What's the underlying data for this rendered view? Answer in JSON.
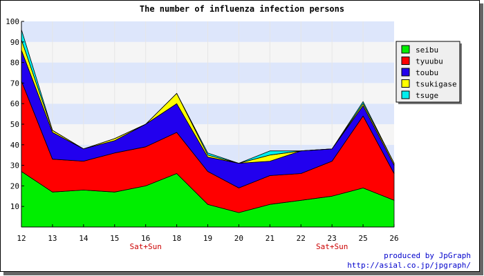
{
  "chart_data": {
    "type": "area",
    "stacked": true,
    "title": "The number of influenza infection persons",
    "xlabel": "",
    "ylabel": "",
    "x": [
      "12",
      "13",
      "14",
      "15",
      "16",
      "18",
      "19",
      "20",
      "21",
      "22",
      "23",
      "25",
      "26"
    ],
    "x_annotations": [
      {
        "x": "16",
        "text": "Sat+Sun"
      },
      {
        "x": "23",
        "text": "Sat+Sun"
      }
    ],
    "ylim": [
      0,
      100
    ],
    "yticks": [
      10,
      20,
      30,
      40,
      50,
      60,
      70,
      80,
      90,
      100
    ],
    "grid": true,
    "band_colors": [
      "#f5f5f5",
      "#dde6fb"
    ],
    "legend_position": "right",
    "series": [
      {
        "name": "seibu",
        "color": "#00ee00",
        "values": [
          27,
          17,
          18,
          17,
          20,
          26,
          11,
          7,
          11,
          13,
          15,
          19,
          13
        ]
      },
      {
        "name": "tyuubu",
        "color": "#ff0000",
        "values": [
          44,
          16,
          14,
          19,
          19,
          20,
          16,
          12,
          14,
          13,
          17,
          35,
          13
        ]
      },
      {
        "name": "toubu",
        "color": "#2200ee",
        "values": [
          15,
          13,
          6,
          6,
          11,
          14,
          7,
          12,
          7,
          11,
          6,
          5,
          4
        ]
      },
      {
        "name": "tsukigase",
        "color": "#ffff00",
        "values": [
          5,
          1,
          0,
          1,
          0,
          5,
          1,
          0,
          3,
          0,
          0,
          1,
          1
        ]
      },
      {
        "name": "tsuge",
        "color": "#00eeee",
        "values": [
          5,
          0,
          0,
          0,
          0,
          0,
          1,
          0,
          2,
          0,
          0,
          1,
          0
        ]
      }
    ]
  },
  "credits": {
    "line1": "produced by JpGraph",
    "line2": "http://asial.co.jp/jpgraph/"
  }
}
